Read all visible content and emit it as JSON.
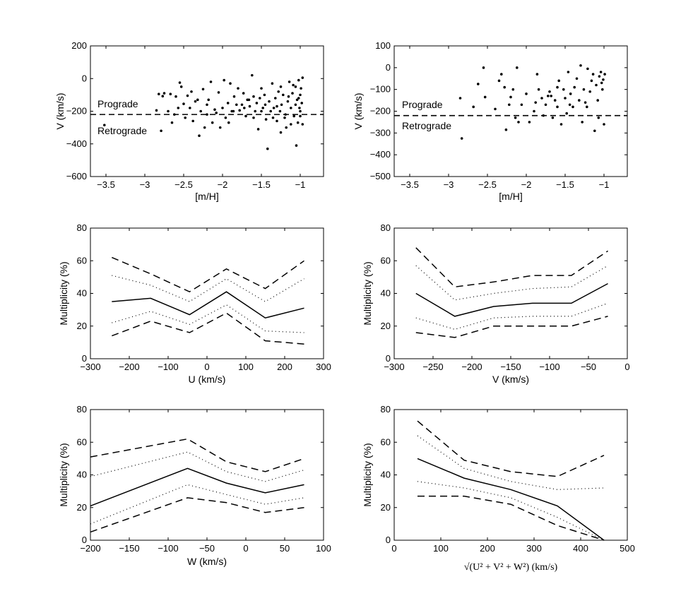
{
  "chart_data": [
    {
      "id": "p1",
      "type": "scatter",
      "xlabel": "[m/H]",
      "ylabel": "V (km/s)",
      "xlim": [
        -3.7,
        -0.7
      ],
      "ylim": [
        -600,
        200
      ],
      "xticks": [
        -3.5,
        -3,
        -2.5,
        -2,
        -1.5,
        -1
      ],
      "yticks": [
        -600,
        -400,
        -200,
        0,
        200
      ],
      "xtick_labels": [
        "−3.5",
        "−3",
        "−2.5",
        "−2",
        "−1.5",
        "−1"
      ],
      "ytick_labels": [
        "−600",
        "−400",
        "−200",
        "0",
        "200"
      ],
      "hline": {
        "y": -220,
        "style": "dashed"
      },
      "annotations": [
        {
          "text": "Prograde",
          "x": -3.55,
          "y": -160
        },
        {
          "text": "Retrograde",
          "x": -3.55,
          "y": -280
        }
      ],
      "points": [
        [
          -3.52,
          -285
        ],
        [
          -2.85,
          -195
        ],
        [
          -2.82,
          -95
        ],
        [
          -2.79,
          -320
        ],
        [
          -2.77,
          -108
        ],
        [
          -2.75,
          -90
        ],
        [
          -2.7,
          -200
        ],
        [
          -2.67,
          -95
        ],
        [
          -2.62,
          -220
        ],
        [
          -2.6,
          -110
        ],
        [
          -2.55,
          -25
        ],
        [
          -2.53,
          -50
        ],
        [
          -2.5,
          -155
        ],
        [
          -2.48,
          -240
        ],
        [
          -2.45,
          -105
        ],
        [
          -2.42,
          -180
        ],
        [
          -2.4,
          -80
        ],
        [
          -2.38,
          -260
        ],
        [
          -2.35,
          -140
        ],
        [
          -2.3,
          -350
        ],
        [
          -2.28,
          -200
        ],
        [
          -2.25,
          -65
        ],
        [
          -2.23,
          -300
        ],
        [
          -2.2,
          -160
        ],
        [
          -2.18,
          -130
        ],
        [
          -2.15,
          -20
        ],
        [
          -2.13,
          -270
        ],
        [
          -2.1,
          -190
        ],
        [
          -2.05,
          -85
        ],
        [
          -2.03,
          -300
        ],
        [
          -2.0,
          -180
        ],
        [
          -1.98,
          -10
        ],
        [
          -1.96,
          -240
        ],
        [
          -1.93,
          -150
        ],
        [
          -1.9,
          -30
        ],
        [
          -1.88,
          -200
        ],
        [
          -1.85,
          -110
        ],
        [
          -1.82,
          -160
        ],
        [
          -1.8,
          -60
        ],
        [
          -1.78,
          -195
        ],
        [
          -1.75,
          -160
        ],
        [
          -1.73,
          -90
        ],
        [
          -1.7,
          -230
        ],
        [
          -1.68,
          -130
        ],
        [
          -1.65,
          -170
        ],
        [
          -1.62,
          20
        ],
        [
          -1.6,
          -110
        ],
        [
          -1.58,
          -200
        ],
        [
          -1.56,
          -150
        ],
        [
          -1.54,
          -310
        ],
        [
          -1.52,
          -120
        ],
        [
          -1.5,
          -60
        ],
        [
          -1.48,
          -180
        ],
        [
          -1.46,
          -100
        ],
        [
          -1.44,
          -250
        ],
        [
          -1.42,
          -430
        ],
        [
          -1.4,
          -140
        ],
        [
          -1.38,
          -200
        ],
        [
          -1.36,
          -30
        ],
        [
          -1.34,
          -180
        ],
        [
          -1.32,
          -120
        ],
        [
          -1.3,
          -260
        ],
        [
          -1.28,
          -80
        ],
        [
          -1.26,
          -200
        ],
        [
          -1.24,
          -160
        ],
        [
          -1.22,
          -100
        ],
        [
          -1.2,
          -240
        ],
        [
          -1.18,
          -300
        ],
        [
          -1.16,
          -140
        ],
        [
          -1.14,
          -20
        ],
        [
          -1.12,
          -180
        ],
        [
          -1.1,
          -90
        ],
        [
          -1.08,
          -230
        ],
        [
          -1.06,
          -50
        ],
        [
          -1.05,
          -410
        ],
        [
          -1.04,
          -130
        ],
        [
          -1.03,
          -270
        ],
        [
          -1.02,
          -10
        ],
        [
          -1.01,
          -180
        ],
        [
          -1.0,
          -100
        ],
        [
          -1.0,
          -230
        ],
        [
          -0.99,
          -60
        ],
        [
          -0.98,
          -150
        ],
        [
          -0.97,
          -280
        ],
        [
          -0.97,
          5
        ],
        [
          -1.0,
          -200
        ],
        [
          -1.02,
          -120
        ],
        [
          -1.06,
          -160
        ],
        [
          -1.09,
          -40
        ],
        [
          -1.12,
          -280
        ],
        [
          -1.15,
          -110
        ],
        [
          -1.19,
          -220
        ],
        [
          -1.25,
          -50
        ],
        [
          -1.3,
          -170
        ],
        [
          -1.35,
          -240
        ],
        [
          -1.45,
          -160
        ],
        [
          -1.5,
          -200
        ],
        [
          -1.6,
          -240
        ],
        [
          -1.66,
          -130
        ],
        [
          -1.72,
          -180
        ],
        [
          -1.86,
          -200
        ],
        [
          -1.92,
          -270
        ],
        [
          -2.08,
          -210
        ],
        [
          -2.2,
          -220
        ],
        [
          -2.32,
          -130
        ],
        [
          -2.57,
          -180
        ],
        [
          -2.65,
          -270
        ],
        [
          -1.25,
          -330
        ]
      ]
    },
    {
      "id": "p2",
      "type": "scatter",
      "xlabel": "[m/H]",
      "ylabel": "V (km/s)",
      "xlim": [
        -3.7,
        -0.7
      ],
      "ylim": [
        -500,
        100
      ],
      "xticks": [
        -3.5,
        -3,
        -2.5,
        -2,
        -1.5,
        -1
      ],
      "yticks": [
        -500,
        -400,
        -300,
        -200,
        -100,
        0,
        100
      ],
      "xtick_labels": [
        "−3.5",
        "−3",
        "−2.5",
        "−2",
        "−1.5",
        "−1"
      ],
      "ytick_labels": [
        "−500",
        "−400",
        "−300",
        "−200",
        "−100",
        "0",
        "100"
      ],
      "hline": {
        "y": -220,
        "style": "dashed"
      },
      "annotations": [
        {
          "text": "Prograde",
          "x": -3.55,
          "y": -170
        },
        {
          "text": "Retrograde",
          "x": -3.55,
          "y": -265
        }
      ],
      "points": [
        [
          -2.83,
          -325
        ],
        [
          -2.85,
          -140
        ],
        [
          -2.68,
          -180
        ],
        [
          -2.62,
          -75
        ],
        [
          -2.55,
          0
        ],
        [
          -2.53,
          -135
        ],
        [
          -2.4,
          -190
        ],
        [
          -2.35,
          -60
        ],
        [
          -2.32,
          -30
        ],
        [
          -2.28,
          -90
        ],
        [
          -2.26,
          -285
        ],
        [
          -2.22,
          -170
        ],
        [
          -2.2,
          -135
        ],
        [
          -2.17,
          -100
        ],
        [
          -2.14,
          -230
        ],
        [
          -2.12,
          0
        ],
        [
          -2.1,
          -250
        ],
        [
          -2.0,
          -120
        ],
        [
          -1.96,
          -250
        ],
        [
          -1.88,
          -160
        ],
        [
          -1.86,
          -30
        ],
        [
          -1.84,
          -100
        ],
        [
          -1.8,
          -140
        ],
        [
          -1.78,
          -220
        ],
        [
          -1.75,
          -170
        ],
        [
          -1.7,
          -110
        ],
        [
          -1.68,
          -130
        ],
        [
          -1.66,
          -230
        ],
        [
          -1.63,
          -150
        ],
        [
          -1.6,
          -180
        ],
        [
          -1.58,
          -60
        ],
        [
          -1.55,
          -260
        ],
        [
          -1.52,
          -100
        ],
        [
          -1.5,
          -140
        ],
        [
          -1.48,
          -210
        ],
        [
          -1.46,
          -20
        ],
        [
          -1.43,
          -120
        ],
        [
          -1.4,
          -180
        ],
        [
          -1.38,
          -90
        ],
        [
          -1.35,
          -50
        ],
        [
          -1.32,
          -150
        ],
        [
          -1.3,
          10
        ],
        [
          -1.28,
          -250
        ],
        [
          -1.26,
          -100
        ],
        [
          -1.24,
          -160
        ],
        [
          -1.21,
          -5
        ],
        [
          -1.18,
          -110
        ],
        [
          -1.16,
          -60
        ],
        [
          -1.14,
          -30
        ],
        [
          -1.12,
          -290
        ],
        [
          -1.1,
          -80
        ],
        [
          -1.08,
          -150
        ],
        [
          -1.06,
          -40
        ],
        [
          -1.04,
          -20
        ],
        [
          -1.02,
          -100
        ],
        [
          -1.01,
          -55
        ],
        [
          -1.0,
          -260
        ],
        [
          -0.99,
          -30
        ],
        [
          -1.03,
          -70
        ],
        [
          -1.07,
          -230
        ],
        [
          -1.22,
          -180
        ],
        [
          -1.44,
          -170
        ],
        [
          -1.6,
          -90
        ],
        [
          -1.72,
          -130
        ],
        [
          -1.9,
          -200
        ],
        [
          -2.06,
          -170
        ]
      ]
    },
    {
      "id": "p3",
      "type": "line",
      "xlabel": "U (km/s)",
      "ylabel": "Multiplicity (%)",
      "xlim": [
        -300,
        300
      ],
      "ylim": [
        0,
        80
      ],
      "xticks": [
        -300,
        -200,
        -100,
        0,
        100,
        200,
        300
      ],
      "yticks": [
        0,
        20,
        40,
        60,
        80
      ],
      "xtick_labels": [
        "−300",
        "−200",
        "−100",
        "0",
        "100",
        "200",
        "300"
      ],
      "ytick_labels": [
        "0",
        "20",
        "40",
        "60",
        "80"
      ],
      "x": [
        -245,
        -145,
        -45,
        50,
        150,
        250
      ],
      "series": [
        {
          "name": "upper-2sigma",
          "style": "dashed",
          "values": [
            62,
            52,
            41,
            55,
            43,
            60
          ]
        },
        {
          "name": "upper-1sigma",
          "style": "dotted",
          "values": [
            51,
            45,
            35,
            49,
            35,
            49
          ]
        },
        {
          "name": "value",
          "style": "solid",
          "values": [
            35,
            37,
            27,
            41,
            25,
            31
          ]
        },
        {
          "name": "lower-1sigma",
          "style": "dotted",
          "values": [
            22,
            29,
            21,
            33,
            17,
            16
          ]
        },
        {
          "name": "lower-2sigma",
          "style": "dashed",
          "values": [
            14,
            23,
            16,
            28,
            11,
            9
          ]
        }
      ]
    },
    {
      "id": "p4",
      "type": "line",
      "xlabel": "V (km/s)",
      "ylabel": "Multiplicity (%)",
      "xlim": [
        -300,
        0
      ],
      "ylim": [
        0,
        80
      ],
      "xticks": [
        -300,
        -250,
        -200,
        -150,
        -100,
        -50,
        0
      ],
      "yticks": [
        0,
        20,
        40,
        60,
        80
      ],
      "xtick_labels": [
        "−300",
        "−250",
        "−200",
        "−150",
        "−100",
        "−50",
        "0"
      ],
      "ytick_labels": [
        "0",
        "20",
        "40",
        "60",
        "80"
      ],
      "x": [
        -272,
        -222,
        -172,
        -122,
        -72,
        -25
      ],
      "series": [
        {
          "name": "upper-2sigma",
          "style": "dashed",
          "values": [
            68,
            44,
            47,
            51,
            51,
            66
          ]
        },
        {
          "name": "upper-1sigma",
          "style": "dotted",
          "values": [
            57,
            36,
            40,
            43,
            44,
            57
          ]
        },
        {
          "name": "value",
          "style": "solid",
          "values": [
            40,
            26,
            32,
            34,
            34,
            46
          ]
        },
        {
          "name": "lower-1sigma",
          "style": "dotted",
          "values": [
            25,
            18,
            25,
            26,
            26,
            34
          ]
        },
        {
          "name": "lower-2sigma",
          "style": "dashed",
          "values": [
            16,
            13,
            20,
            20,
            20,
            26
          ]
        }
      ]
    },
    {
      "id": "p5",
      "type": "line",
      "xlabel": "W (km/s)",
      "ylabel": "Multiplicity (%)",
      "xlim": [
        -200,
        100
      ],
      "ylim": [
        0,
        80
      ],
      "xticks": [
        -200,
        -150,
        -100,
        -50,
        0,
        50,
        100
      ],
      "yticks": [
        0,
        20,
        40,
        60,
        80
      ],
      "xtick_labels": [
        "−200",
        "−150",
        "−100",
        "−50",
        "0",
        "50",
        "100"
      ],
      "ytick_labels": [
        "0",
        "20",
        "40",
        "60",
        "80"
      ],
      "x": [
        -200,
        -75,
        -25,
        25,
        75
      ],
      "series": [
        {
          "name": "upper-2sigma",
          "style": "dashed",
          "values": [
            51,
            62,
            48,
            42,
            50
          ]
        },
        {
          "name": "upper-1sigma",
          "style": "dotted",
          "values": [
            39,
            54,
            42,
            36,
            43
          ]
        },
        {
          "name": "value",
          "style": "solid",
          "values": [
            21,
            44,
            35,
            29,
            34
          ]
        },
        {
          "name": "lower-1sigma",
          "style": "dotted",
          "values": [
            10,
            34,
            28,
            22,
            26
          ]
        },
        {
          "name": "lower-2sigma",
          "style": "dashed",
          "values": [
            5,
            26,
            23,
            17,
            20
          ]
        }
      ]
    },
    {
      "id": "p6",
      "type": "line",
      "xlabel": "√(U² + V² + W²) (km/s)",
      "ylabel": "Multiplicity (%)",
      "xlim": [
        0,
        500
      ],
      "ylim": [
        0,
        80
      ],
      "xticks": [
        0,
        100,
        200,
        300,
        400,
        500
      ],
      "yticks": [
        0,
        20,
        40,
        60,
        80
      ],
      "xtick_labels": [
        "0",
        "100",
        "200",
        "300",
        "400",
        "500"
      ],
      "ytick_labels": [
        "0",
        "20",
        "40",
        "60",
        "80"
      ],
      "x": [
        50,
        150,
        250,
        350,
        450
      ],
      "series": [
        {
          "name": "upper-2sigma",
          "style": "dashed",
          "values": [
            73,
            49,
            42,
            39,
            52
          ]
        },
        {
          "name": "upper-1sigma",
          "style": "dotted",
          "values": [
            64,
            44,
            36,
            31,
            32
          ]
        },
        {
          "name": "value",
          "style": "solid",
          "values": [
            50,
            38,
            31,
            21,
            0
          ]
        },
        {
          "name": "lower-1sigma",
          "style": "dotted",
          "values": [
            36,
            32,
            26,
            14,
            0
          ]
        },
        {
          "name": "lower-2sigma",
          "style": "dashed",
          "values": [
            27,
            27,
            22,
            9,
            0
          ]
        }
      ]
    }
  ]
}
